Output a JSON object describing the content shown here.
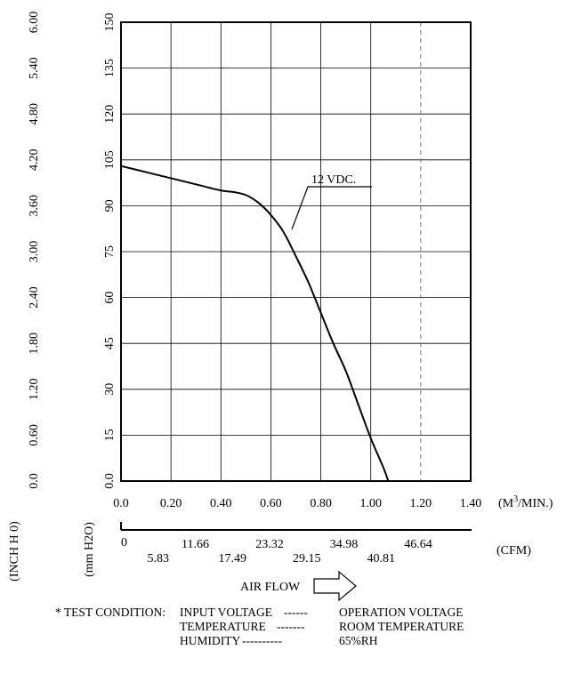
{
  "chart_data": {
    "type": "line",
    "title": "",
    "y_axes": {
      "inner": {
        "label": "(mm H2O)",
        "range": [
          0,
          150
        ],
        "ticks": [
          "0.0",
          "15",
          "30",
          "45",
          "60",
          "75",
          "90",
          "105",
          "120",
          "135",
          "150"
        ]
      },
      "outer": {
        "label": "(INCH H 0)",
        "range": [
          0,
          6.0
        ],
        "ticks": [
          "0.0",
          "0.60",
          "1.20",
          "1.80",
          "2.40",
          "3.00",
          "3.60",
          "4.20",
          "4.80",
          "5.40",
          "6.00"
        ]
      }
    },
    "x_axes": {
      "primary": {
        "label_prefix": "(M",
        "label_sup": "3",
        "label_suffix": "/MIN.)",
        "range": [
          0,
          1.4
        ],
        "ticks": [
          "0.0",
          "0.20",
          "0.40",
          "0.60",
          "0.80",
          "1.00",
          "1.20",
          "1.40"
        ]
      },
      "secondary": {
        "label": "(CFM)",
        "ticks": [
          "0",
          "5.83",
          "11.66",
          "17.49",
          "23.32",
          "29.15",
          "34.98",
          "40.81",
          "46.64"
        ]
      }
    },
    "xlabel": "AIR FLOW",
    "grid": true,
    "dashed_line_x": 1.2,
    "series": [
      {
        "name": "12 VDC.",
        "x": [
          0.0,
          0.1,
          0.2,
          0.3,
          0.4,
          0.45,
          0.5,
          0.55,
          0.6,
          0.65,
          0.7,
          0.75,
          0.8,
          0.85,
          0.9,
          0.95,
          1.0,
          1.05,
          1.07
        ],
        "y": [
          103,
          101,
          99,
          97,
          95,
          94.5,
          93.5,
          91,
          87,
          81.5,
          73.5,
          65,
          55,
          45,
          36,
          25,
          14,
          4.5,
          0
        ]
      }
    ]
  },
  "test_condition": {
    "heading": "* TEST CONDITION:",
    "rows": [
      {
        "name": "INPUT VOLTAGE",
        "dashes": "------",
        "value": "OPERATION VOLTAGE"
      },
      {
        "name": "TEMPERATURE",
        "dashes": "-------",
        "value": "ROOM TEMPERATURE"
      },
      {
        "name": "HUMIDITY",
        "dashes": "----------",
        "value": "65%RH"
      }
    ]
  }
}
